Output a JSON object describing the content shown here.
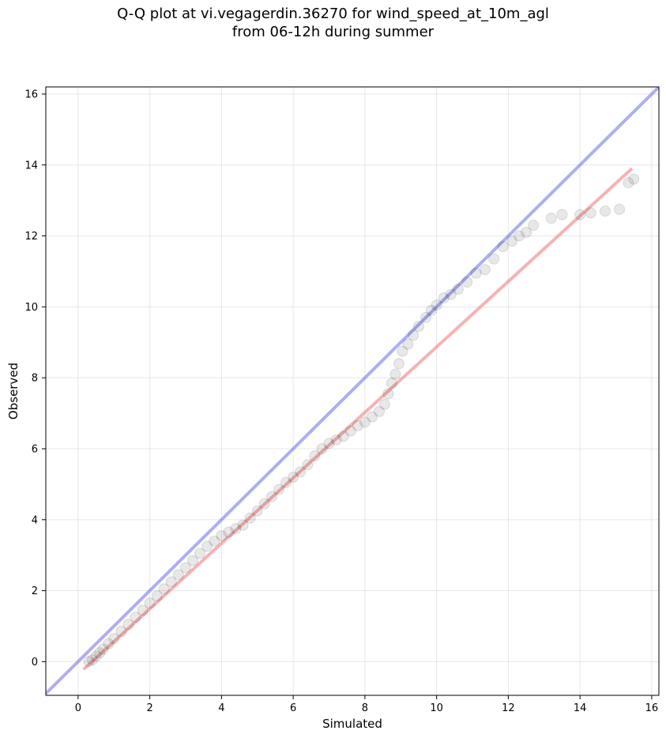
{
  "chart_data": {
    "type": "scatter",
    "title": "Q-Q plot at vi.vegagerdin.36270 for wind_speed_at_10m_agl\nfrom 06-12h during summer",
    "xlabel": "Simulated",
    "ylabel": "Observed",
    "xlim": [
      -0.9,
      16.2
    ],
    "ylim": [
      -0.95,
      16.2
    ],
    "xticks": [
      0,
      2,
      4,
      6,
      8,
      10,
      12,
      14,
      16
    ],
    "yticks": [
      0,
      2,
      4,
      6,
      8,
      10,
      12,
      14,
      16
    ],
    "grid": true,
    "quantile_points": {
      "x": [
        0.3,
        0.4,
        0.5,
        0.6,
        0.7,
        0.85,
        1.0,
        1.2,
        1.4,
        1.6,
        1.8,
        2.0,
        2.2,
        2.4,
        2.6,
        2.8,
        3.0,
        3.2,
        3.4,
        3.6,
        3.8,
        4.0,
        4.2,
        4.4,
        4.6,
        4.8,
        5.0,
        5.2,
        5.4,
        5.6,
        5.8,
        6.0,
        6.2,
        6.4,
        6.6,
        6.8,
        7.0,
        7.2,
        7.4,
        7.6,
        7.8,
        8.0,
        8.2,
        8.4,
        8.55,
        8.65,
        8.75,
        8.85,
        8.95,
        9.05,
        9.2,
        9.35,
        9.5,
        9.7,
        9.85,
        10.0,
        10.2,
        10.4,
        10.6,
        10.85,
        11.1,
        11.35,
        11.6,
        11.85,
        12.1,
        12.3,
        12.5,
        12.7,
        13.2,
        13.5,
        14.0,
        14.3,
        14.7,
        15.1,
        15.35,
        15.5
      ],
      "y": [
        0.0,
        0.05,
        0.15,
        0.25,
        0.35,
        0.5,
        0.65,
        0.85,
        1.05,
        1.25,
        1.45,
        1.65,
        1.85,
        2.05,
        2.25,
        2.45,
        2.65,
        2.85,
        3.05,
        3.25,
        3.4,
        3.55,
        3.65,
        3.75,
        3.85,
        4.05,
        4.25,
        4.45,
        4.65,
        4.85,
        5.05,
        5.2,
        5.35,
        5.55,
        5.8,
        6.0,
        6.15,
        6.25,
        6.35,
        6.5,
        6.65,
        6.75,
        6.9,
        7.05,
        7.25,
        7.55,
        7.85,
        8.1,
        8.4,
        8.75,
        8.95,
        9.2,
        9.45,
        9.7,
        9.9,
        10.05,
        10.25,
        10.35,
        10.5,
        10.7,
        10.95,
        11.05,
        11.35,
        11.7,
        11.85,
        12.0,
        12.1,
        12.3,
        12.5,
        12.6,
        12.6,
        12.65,
        12.7,
        12.75,
        13.5,
        13.6
      ]
    },
    "identity_line": {
      "x": [
        -0.9,
        16.2
      ],
      "y": [
        -0.9,
        16.2
      ],
      "color": "#6a6aef"
    },
    "fit_line": {
      "x": [
        0.15,
        15.45
      ],
      "y": [
        -0.22,
        13.9
      ],
      "color": "#f07f7f"
    },
    "point_color": "#000000"
  }
}
